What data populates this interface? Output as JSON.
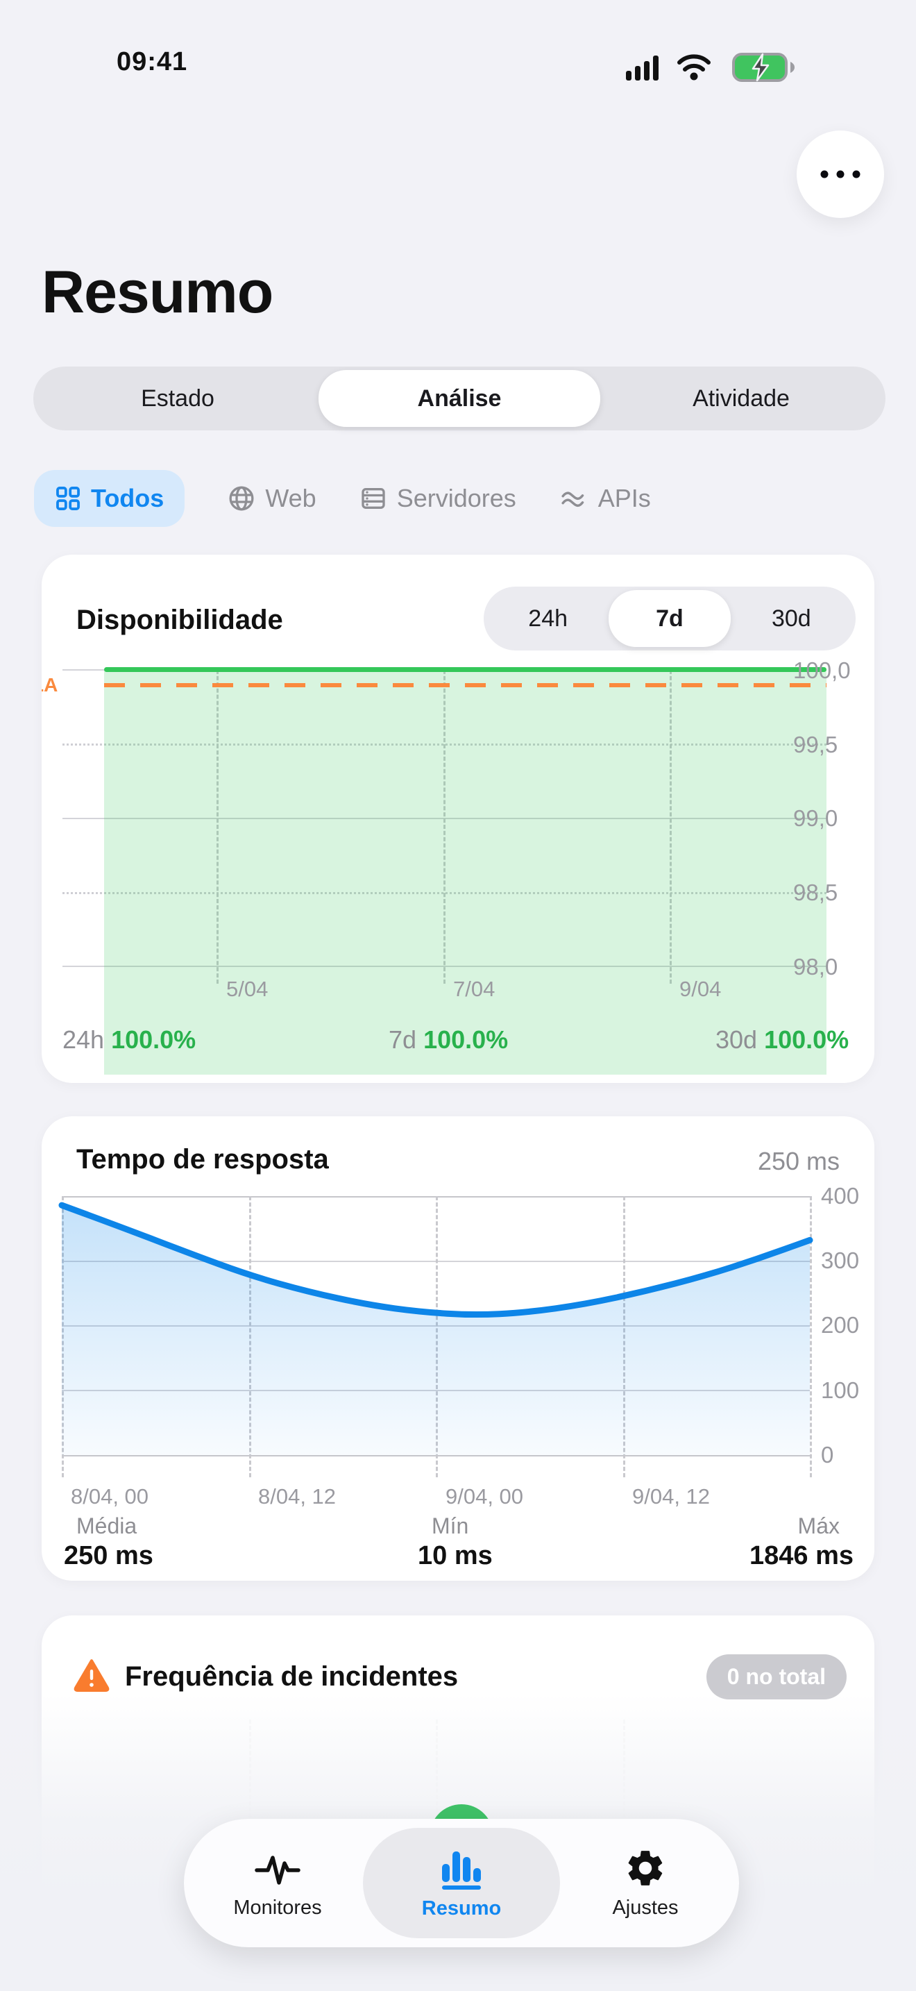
{
  "status_bar": {
    "time": "09:41",
    "icons": [
      "cellular-signal-icon",
      "wifi-icon",
      "battery-charging-icon"
    ]
  },
  "header": {
    "title": "Resumo",
    "menu_icon": "ellipsis-icon"
  },
  "view_tabs": {
    "items": [
      {
        "label": "Estado",
        "selected": false
      },
      {
        "label": "Análise",
        "selected": true
      },
      {
        "label": "Atividade",
        "selected": false
      }
    ]
  },
  "filters": {
    "items": [
      {
        "label": "Todos",
        "icon": "grid-icon",
        "selected": true
      },
      {
        "label": "Web",
        "icon": "globe-icon",
        "selected": false
      },
      {
        "label": "Servidores",
        "icon": "server-icon",
        "selected": false
      },
      {
        "label": "APIs",
        "icon": "waves-icon",
        "selected": false
      }
    ]
  },
  "availability_card": {
    "title": "Disponibilidade",
    "range_tabs": [
      {
        "label": "24h",
        "selected": false
      },
      {
        "label": "7d",
        "selected": true
      },
      {
        "label": "30d",
        "selected": false
      }
    ],
    "sla_label": "LA",
    "y_labels": [
      "100,0",
      "99,5",
      "99,0",
      "98,5",
      "98,0"
    ],
    "x_labels": [
      "5/04",
      "7/04",
      "9/04"
    ],
    "stats": [
      {
        "label": "24h",
        "value": "100.0%"
      },
      {
        "label": "7d",
        "value": "100.0%"
      },
      {
        "label": "30d",
        "value": "100.0%"
      }
    ],
    "colors": {
      "line": "#34c759",
      "fill": "rgba(61,199,96,0.20)",
      "sla": "#fa8a3e",
      "value_text": "#28b14c"
    }
  },
  "response_card": {
    "title": "Tempo de resposta",
    "current": "250 ms",
    "y_labels": [
      "400",
      "300",
      "200",
      "100",
      "0"
    ],
    "x_labels": [
      "8/04, 00",
      "8/04, 12",
      "9/04, 00",
      "9/04, 12"
    ],
    "stats": [
      {
        "label": "Média",
        "value": "250 ms"
      },
      {
        "label": "Mín",
        "value": "10 ms"
      },
      {
        "label": "Máx",
        "value": "1846 ms"
      }
    ],
    "colors": {
      "line": "#0d85e8"
    }
  },
  "incidents_card": {
    "title": "Frequência de incidentes",
    "icon": "warning-icon",
    "badge": "0 no total"
  },
  "tab_bar": {
    "items": [
      {
        "label": "Monitores",
        "icon": "activity-icon",
        "selected": false
      },
      {
        "label": "Resumo",
        "icon": "bar-chart-icon",
        "selected": true
      },
      {
        "label": "Ajustes",
        "icon": "gear-icon",
        "selected": false
      }
    ]
  },
  "chart_data": [
    {
      "type": "area",
      "title": "Disponibilidade",
      "period_selected": "7d",
      "series": [
        {
          "name": "uptime_percent",
          "values": [
            100.0,
            100.0,
            100.0,
            100.0,
            100.0,
            100.0,
            100.0
          ]
        }
      ],
      "x_ticks": [
        "5/04",
        "7/04",
        "9/04"
      ],
      "y_ticks": [
        100.0,
        99.5,
        99.0,
        98.5,
        98.0
      ],
      "ylim": [
        98.0,
        100.0
      ],
      "sla_line": 99.9,
      "legend": "none",
      "grid": "on"
    },
    {
      "type": "line",
      "title": "Tempo de resposta",
      "unit": "ms",
      "ylim": [
        0,
        400
      ],
      "y_ticks": [
        400,
        300,
        200,
        100,
        0
      ],
      "x_ticks": [
        "8/04, 00",
        "8/04, 12",
        "9/04, 00",
        "9/04, 12"
      ],
      "points": [
        {
          "x": 0.0,
          "y": 386
        },
        {
          "x": 0.08,
          "y": 352
        },
        {
          "x": 0.17,
          "y": 312
        },
        {
          "x": 0.25,
          "y": 278
        },
        {
          "x": 0.33,
          "y": 252
        },
        {
          "x": 0.41,
          "y": 232
        },
        {
          "x": 0.48,
          "y": 221
        },
        {
          "x": 0.55,
          "y": 216
        },
        {
          "x": 0.62,
          "y": 220
        },
        {
          "x": 0.7,
          "y": 233
        },
        {
          "x": 0.78,
          "y": 253
        },
        {
          "x": 0.86,
          "y": 277
        },
        {
          "x": 0.93,
          "y": 303
        },
        {
          "x": 1.0,
          "y": 332
        }
      ],
      "stats": {
        "avg_ms": 250,
        "min_ms": 10,
        "max_ms": 1846
      },
      "grid": "on",
      "legend": "none"
    }
  ]
}
